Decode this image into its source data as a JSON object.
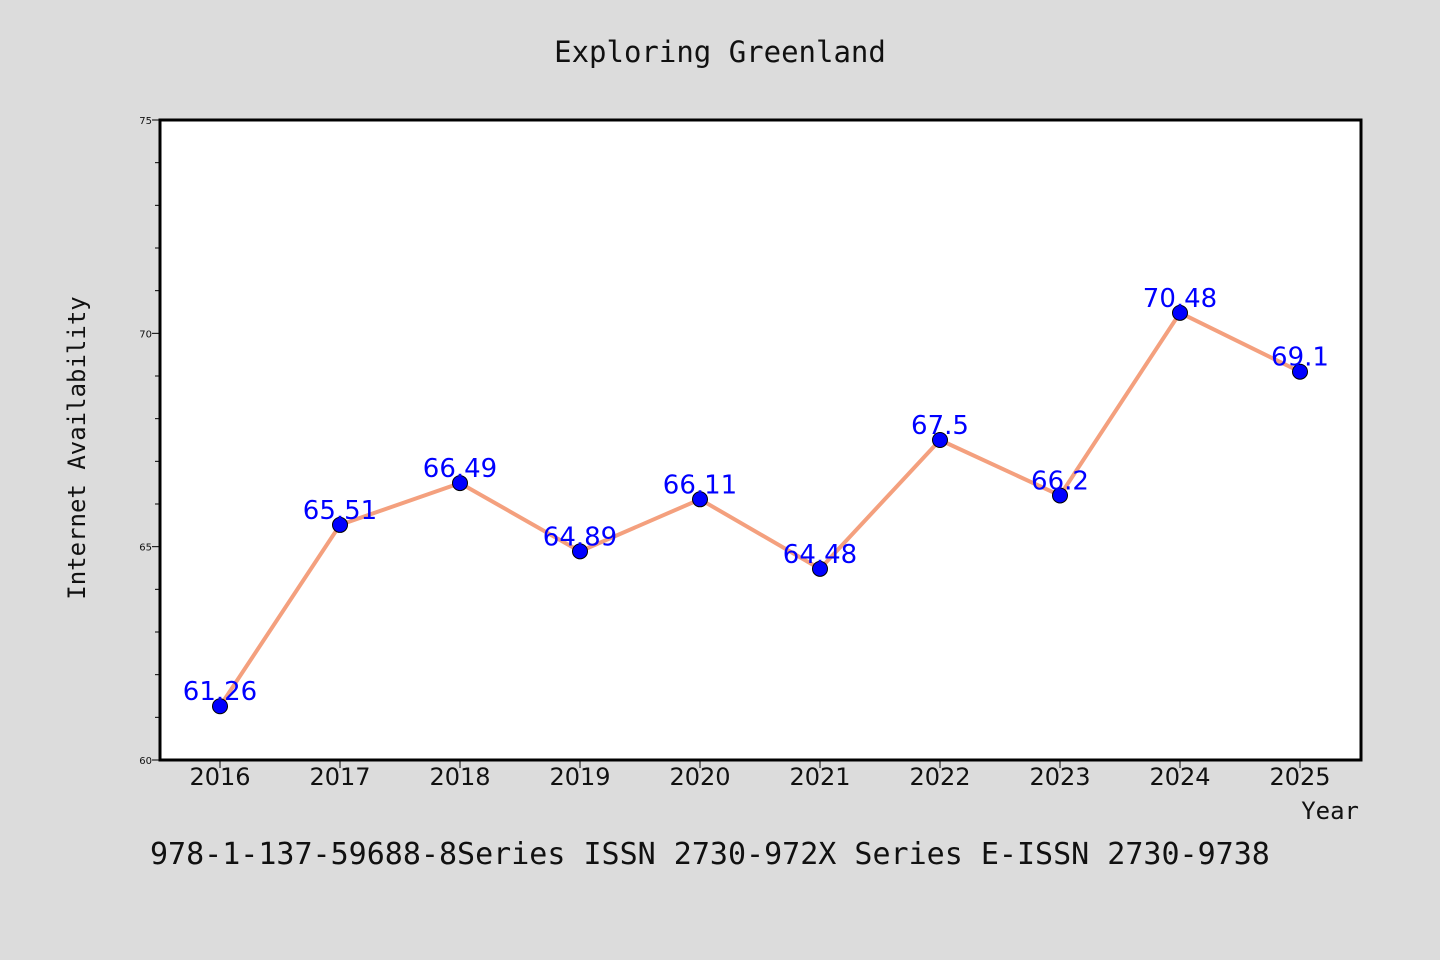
{
  "chart_data": {
    "type": "line",
    "title": "Exploring Greenland",
    "xlabel": "Year",
    "ylabel": "Internet Availability",
    "categories": [
      "2016",
      "2017",
      "2018",
      "2019",
      "2020",
      "2021",
      "2022",
      "2023",
      "2024",
      "2025"
    ],
    "series": [
      {
        "values": [
          61.26,
          65.51,
          66.49,
          64.89,
          66.11,
          64.48,
          67.5,
          66.2,
          70.48,
          69.1
        ],
        "labels": [
          "61.26",
          "65.51",
          "66.49",
          "64.89",
          "66.11",
          "64.48",
          "67.5",
          "66.2",
          "70.48",
          "69.1"
        ],
        "line_color": "#f4a07e",
        "marker_color": "#0000ff"
      }
    ],
    "ylim": [
      60,
      75
    ],
    "yticks": [
      "60",
      "65",
      "70",
      "75"
    ],
    "grid": false,
    "legend": "none"
  },
  "footer": {
    "text": "978-1-137-59688-8Series ISSN 2730-972X Series E-ISSN 2730-9738"
  },
  "colors": {
    "background": "#dcdcdc",
    "plot_background": "#ffffff",
    "label": "#0000ff"
  }
}
